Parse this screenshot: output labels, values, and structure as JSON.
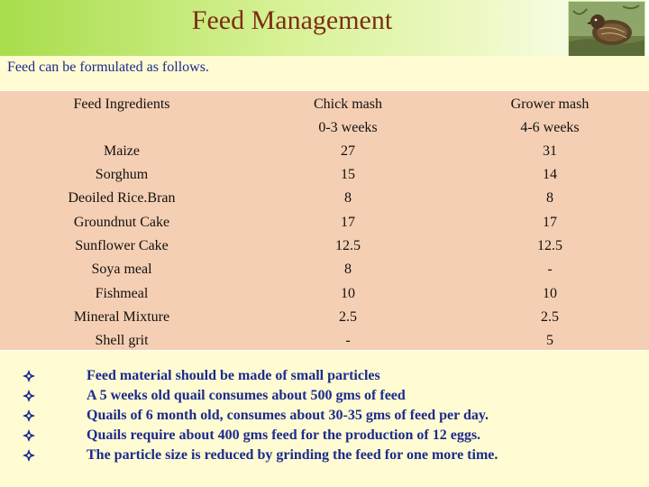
{
  "title": "Feed Management",
  "subtitle": "Feed can be formulated as follows.",
  "table": {
    "headers": {
      "ingredients": "Feed Ingredients",
      "chick": "Chick mash",
      "chick_age": "0-3 weeks",
      "grower": "Grower mash",
      "grower_age": "4-6 weeks"
    },
    "rows": [
      {
        "ingredient": "Maize",
        "chick": "27",
        "grower": "31"
      },
      {
        "ingredient": "Sorghum",
        "chick": "15",
        "grower": "14"
      },
      {
        "ingredient": "Deoiled Rice.Bran",
        "chick": "8",
        "grower": "8"
      },
      {
        "ingredient": "Groundnut Cake",
        "chick": "17",
        "grower": "17"
      },
      {
        "ingredient": "Sunflower Cake",
        "chick": "12.5",
        "grower": "12.5"
      },
      {
        "ingredient": "Soya meal",
        "chick": "8",
        "grower": "-"
      },
      {
        "ingredient": "Fishmeal",
        "chick": "10",
        "grower": "10"
      },
      {
        "ingredient": "Mineral Mixture",
        "chick": "2.5",
        "grower": "2.5"
      },
      {
        "ingredient": "Shell grit",
        "chick": "-",
        "grower": "5"
      }
    ]
  },
  "notes": [
    "Feed material should be made of small particles",
    "A  5 weeks old quail consumes about 500 gms of feed",
    "Quails of 6 month old, consumes about 30-35 gms of feed per day.",
    "Quails require about 400 gms feed for the production of 12 eggs.",
    "The particle size is reduced by grinding the feed for one more time."
  ],
  "colors": {
    "title": "#7d2e14",
    "text_blue": "#1b2b8c",
    "table_bg": "#f5cfb3",
    "page_bg": "#fffbd3"
  },
  "icons": {
    "bullet": "diamond-bullet-icon",
    "photo": "quail-photo"
  }
}
